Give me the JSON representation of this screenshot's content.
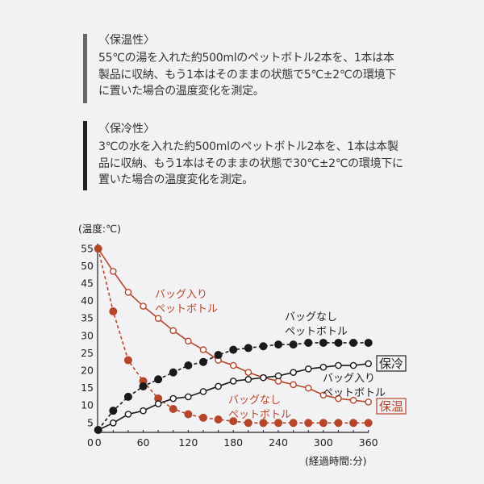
{
  "sections": [
    {
      "heading": "〈保温性〉",
      "lines": [
        "55℃の湯を入れた約500mlのペットボトル2本を、1本は本",
        "製品に収納、もう1本はそのままの状態で5℃±2℃の環境下",
        "に置いた場合の温度変化を測定。"
      ],
      "bar_color": "#666666"
    },
    {
      "heading": "〈保冷性〉",
      "lines": [
        "3℃の水を入れた約500mlのペットボトル2本を、1本は本製",
        "品に収納、もう1本はそのままの状態で30℃±2℃の環境下に",
        "置いた場合の温度変化を測定。"
      ],
      "bar_color": "#222222"
    }
  ],
  "chart_data": {
    "type": "line",
    "ylabel": "(温度:℃)",
    "xlabel": "(経過時間:分)",
    "x": [
      0,
      20,
      40,
      60,
      80,
      100,
      120,
      140,
      160,
      180,
      200,
      220,
      240,
      260,
      280,
      300,
      320,
      340,
      360
    ],
    "xticks": [
      0,
      60,
      120,
      180,
      240,
      300,
      360
    ],
    "yticks": [
      5,
      10,
      15,
      20,
      25,
      30,
      35,
      40,
      45,
      50,
      55
    ],
    "xlim": [
      0,
      360
    ],
    "ylim": [
      0,
      55
    ],
    "grid": false,
    "group_labels": {
      "cold": "保冷",
      "warm": "保温"
    },
    "series": [
      {
        "group": "warm",
        "label": [
          "バッグ入り",
          "ペットボトル"
        ],
        "style": "solid",
        "marker": "hollow",
        "color": "#b5462a",
        "values": [
          55,
          48.5,
          42.5,
          38.5,
          35,
          31.5,
          28.5,
          26,
          23,
          21.5,
          19.5,
          18,
          17,
          16,
          15,
          13,
          12,
          11.5,
          11
        ]
      },
      {
        "group": "warm",
        "label": [
          "バッグなし",
          "ペットボトル"
        ],
        "style": "dashed",
        "marker": "filled",
        "color": "#b5462a",
        "values": [
          55,
          37,
          23,
          17,
          12,
          9,
          7.5,
          6.5,
          6,
          5.5,
          5,
          5,
          5,
          5,
          5,
          5,
          5,
          5,
          5
        ]
      },
      {
        "group": "cold",
        "label": [
          "バッグ入り",
          "ペットボトル"
        ],
        "style": "solid",
        "marker": "hollow",
        "color": "#1a1a1a",
        "values": [
          3,
          5,
          7.5,
          8.5,
          10.5,
          12,
          12.5,
          14,
          15.5,
          17,
          17.5,
          18,
          18.5,
          19.5,
          20.5,
          21,
          21.5,
          21.5,
          22
        ]
      },
      {
        "group": "cold",
        "label": [
          "バッグなし",
          "ペットボトル"
        ],
        "style": "dashed",
        "marker": "filled",
        "color": "#1a1a1a",
        "values": [
          3,
          8.5,
          12.5,
          15.5,
          17.5,
          19.5,
          21.5,
          22.5,
          24.5,
          26,
          26.5,
          27,
          27.5,
          27.5,
          28,
          28,
          28,
          28,
          28
        ]
      }
    ]
  }
}
